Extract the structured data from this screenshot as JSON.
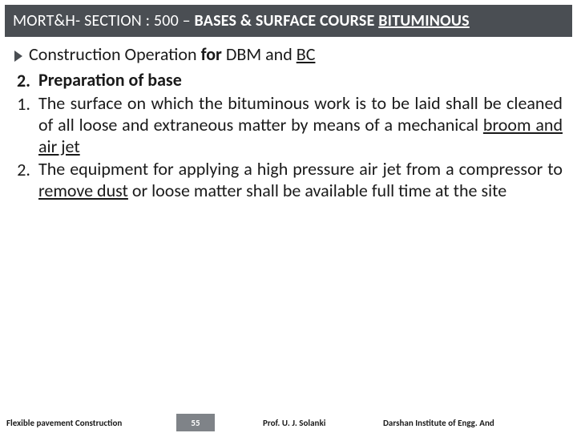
{
  "header": {
    "prefix": "MORT&H- SECTION : 500 – ",
    "bold": "BASES  & SURFACE COURSE ",
    "underlined": "BITUMINOUS"
  },
  "lead": {
    "pre": "Construction Operation ",
    "bold1": "for",
    "mid": " DBM and ",
    "under": "BC"
  },
  "items": [
    {
      "num": "2.",
      "bold": true,
      "text": "Preparation of base"
    },
    {
      "num": "1.",
      "bold": false,
      "segments": [
        {
          "t": "The surface on which the bituminous work is to be laid shall be cleaned of all loose and extraneous matter by means of a mechanical "
        },
        {
          "t": "broom and air jet",
          "u": true
        }
      ]
    },
    {
      "num": "2.",
      "bold": false,
      "segments": [
        {
          "t": "The equipment for applying a high pressure air jet from a compressor to "
        },
        {
          "t": "remove dust",
          "u": true
        },
        {
          "t": " or loose matter shall be available full time at the site"
        }
      ]
    }
  ],
  "footer": {
    "left": "Flexible pavement Construction",
    "page": "55",
    "prof": "Prof. U. J. Solanki",
    "inst": "Darshan Institute of Engg. And"
  },
  "colors": {
    "header_bg": "#4a4e53",
    "page_bg": "#7f8388",
    "text": "#1a1a1a",
    "bg": "#ffffff"
  }
}
